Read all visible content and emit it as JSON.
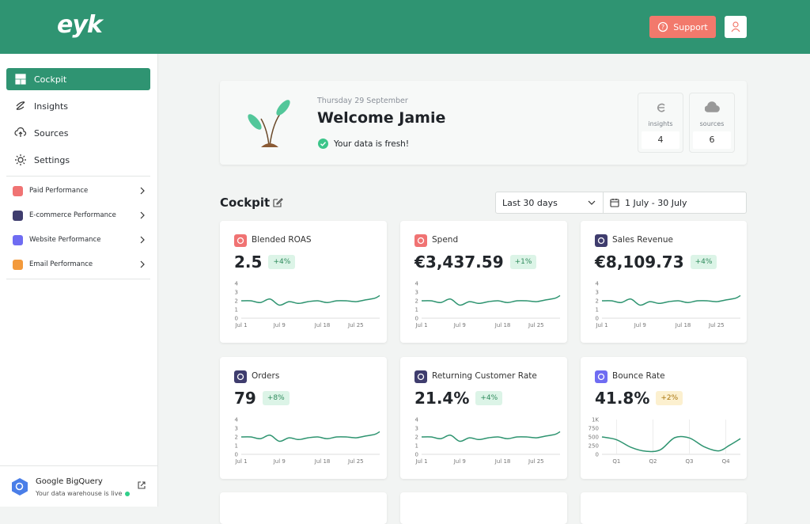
{
  "header": {
    "logo": "eyk",
    "support": "Support"
  },
  "sidebar": {
    "nav": [
      {
        "label": "Cockpit",
        "active": true
      },
      {
        "label": "Insights"
      },
      {
        "label": "Sources"
      },
      {
        "label": "Settings"
      }
    ],
    "sections": [
      {
        "label": "Paid Performance",
        "color": "#f07373"
      },
      {
        "label": "E-commerce Performance",
        "color": "#3f3d6e"
      },
      {
        "label": "Website Performance",
        "color": "#6f6cf2"
      },
      {
        "label": "Email Performance",
        "color": "#f39a3c"
      }
    ],
    "footer": {
      "title": "Google BigQuery",
      "status": "Your data warehouse is live"
    }
  },
  "welcome": {
    "date": "Thursday 29 September",
    "title": "Welcome Jamie",
    "status": "Your data is fresh!",
    "stats": [
      {
        "label": "insights",
        "value": "4"
      },
      {
        "label": "sources",
        "value": "6"
      }
    ]
  },
  "cockpit": {
    "title": "Cockpit",
    "range": "Last 30 days",
    "dates": "1 July - 30 July"
  },
  "cards": [
    {
      "title": "Blended ROAS",
      "value": "2.5",
      "change": "+4%",
      "icon_color": "#f07373",
      "badge_bg": "#dcf4e7",
      "badge_fg": "#2e8a5c",
      "chart": {
        "type": "line",
        "color": "#2e9470",
        "x": [
          1,
          3,
          5,
          7,
          9,
          11,
          13,
          15,
          17,
          19,
          21,
          23,
          25,
          27,
          29,
          30
        ],
        "values": [
          2.0,
          2.0,
          1.8,
          2.2,
          1.5,
          1.9,
          1.7,
          1.9,
          2.0,
          1.8,
          2.0,
          2.0,
          1.9,
          2.1,
          2.3,
          2.6
        ],
        "xlim": [
          1,
          30
        ],
        "xticks": [
          {
            "value": 1,
            "label": "Jul 1"
          },
          {
            "value": 9,
            "label": "Jul 9"
          },
          {
            "value": 18,
            "label": "Jul 18"
          },
          {
            "value": 25,
            "label": "Jul 25"
          }
        ],
        "ylim": [
          0,
          4
        ],
        "yticks": [
          0,
          1,
          2,
          3,
          4
        ]
      }
    },
    {
      "title": "Spend",
      "value": "€3,437.59",
      "change": "+1%",
      "icon_color": "#f07373",
      "badge_bg": "#dcf4e7",
      "badge_fg": "#2e8a5c",
      "chart": {
        "type": "line",
        "color": "#2e9470",
        "x": [
          1,
          3,
          5,
          7,
          9,
          11,
          13,
          15,
          17,
          19,
          21,
          23,
          25,
          27,
          29,
          30
        ],
        "values": [
          2.0,
          2.0,
          1.8,
          2.2,
          1.5,
          1.9,
          1.7,
          1.9,
          2.0,
          1.8,
          2.0,
          2.0,
          1.9,
          2.1,
          2.3,
          2.6
        ],
        "xlim": [
          1,
          30
        ],
        "xticks": [
          {
            "value": 1,
            "label": "Jul 1"
          },
          {
            "value": 9,
            "label": "Jul 9"
          },
          {
            "value": 18,
            "label": "Jul 18"
          },
          {
            "value": 25,
            "label": "Jul 25"
          }
        ],
        "ylim": [
          0,
          4
        ],
        "yticks": [
          0,
          1,
          2,
          3,
          4
        ]
      }
    },
    {
      "title": "Sales Revenue",
      "value": "€8,109.73",
      "change": "+4%",
      "icon_color": "#3f3d6e",
      "badge_bg": "#dcf4e7",
      "badge_fg": "#2e8a5c",
      "chart": {
        "type": "line",
        "color": "#2e9470",
        "x": [
          1,
          3,
          5,
          7,
          9,
          11,
          13,
          15,
          17,
          19,
          21,
          23,
          25,
          27,
          29,
          30
        ],
        "values": [
          2.0,
          2.0,
          1.8,
          2.2,
          1.5,
          1.9,
          1.7,
          1.9,
          2.0,
          1.8,
          2.0,
          2.0,
          1.9,
          2.1,
          2.3,
          2.6
        ],
        "xlim": [
          1,
          30
        ],
        "xticks": [
          {
            "value": 1,
            "label": "Jul 1"
          },
          {
            "value": 9,
            "label": "Jul 9"
          },
          {
            "value": 18,
            "label": "Jul 18"
          },
          {
            "value": 25,
            "label": "Jul 25"
          }
        ],
        "ylim": [
          0,
          4
        ],
        "yticks": [
          0,
          1,
          2,
          3,
          4
        ]
      }
    },
    {
      "title": "Orders",
      "value": "79",
      "change": "+8%",
      "icon_color": "#3f3d6e",
      "badge_bg": "#dcf4e7",
      "badge_fg": "#2e8a5c",
      "chart": {
        "type": "line",
        "color": "#2e9470",
        "x": [
          1,
          3,
          5,
          7,
          9,
          11,
          13,
          15,
          17,
          19,
          21,
          23,
          25,
          27,
          29,
          30
        ],
        "values": [
          2.0,
          2.0,
          1.8,
          2.2,
          1.5,
          1.9,
          1.7,
          1.9,
          2.0,
          1.8,
          2.0,
          2.0,
          1.9,
          2.1,
          2.3,
          2.6
        ],
        "xlim": [
          1,
          30
        ],
        "xticks": [
          {
            "value": 1,
            "label": "Jul 1"
          },
          {
            "value": 9,
            "label": "Jul 9"
          },
          {
            "value": 18,
            "label": "Jul 18"
          },
          {
            "value": 25,
            "label": "Jul 25"
          }
        ],
        "ylim": [
          0,
          4
        ],
        "yticks": [
          0,
          1,
          2,
          3,
          4
        ]
      }
    },
    {
      "title": "Returning Customer Rate",
      "value": "21.4%",
      "change": "+4%",
      "icon_color": "#3f3d6e",
      "badge_bg": "#dcf4e7",
      "badge_fg": "#2e8a5c",
      "chart": {
        "type": "line",
        "color": "#2e9470",
        "x": [
          1,
          3,
          5,
          7,
          9,
          11,
          13,
          15,
          17,
          19,
          21,
          23,
          25,
          27,
          29,
          30
        ],
        "values": [
          2.0,
          2.0,
          1.8,
          2.2,
          1.5,
          1.9,
          1.7,
          1.9,
          2.0,
          1.8,
          2.0,
          2.0,
          1.9,
          2.1,
          2.3,
          2.6
        ],
        "xlim": [
          1,
          30
        ],
        "xticks": [
          {
            "value": 1,
            "label": "Jul 1"
          },
          {
            "value": 9,
            "label": "Jul 9"
          },
          {
            "value": 18,
            "label": "Jul 18"
          },
          {
            "value": 25,
            "label": "Jul 25"
          }
        ],
        "ylim": [
          0,
          4
        ],
        "yticks": [
          0,
          1,
          2,
          3,
          4
        ]
      }
    },
    {
      "title": "Bounce Rate",
      "value": "41.8%",
      "change": "+2%",
      "icon_color": "#6f6cf2",
      "badge_bg": "#fcf0cf",
      "badge_fg": "#a9740c",
      "chart": {
        "type": "line",
        "color": "#2e9470",
        "xgrid": true,
        "x": [
          0.6,
          1,
          1.4,
          1.8,
          2.2,
          2.6,
          3,
          3.4,
          3.8,
          4.1,
          4.4
        ],
        "values": [
          500,
          420,
          200,
          90,
          130,
          480,
          470,
          220,
          100,
          260,
          450
        ],
        "xlim": [
          0.6,
          4.4
        ],
        "xticks": [
          {
            "value": 1,
            "label": "Q1"
          },
          {
            "value": 2,
            "label": "Q2"
          },
          {
            "value": 3,
            "label": "Q3"
          },
          {
            "value": 4,
            "label": "Q4"
          }
        ],
        "ylim": [
          0,
          1000
        ],
        "yticks": [
          0,
          250,
          500,
          750,
          {
            "value": 1000,
            "label": "1K"
          }
        ]
      }
    }
  ]
}
